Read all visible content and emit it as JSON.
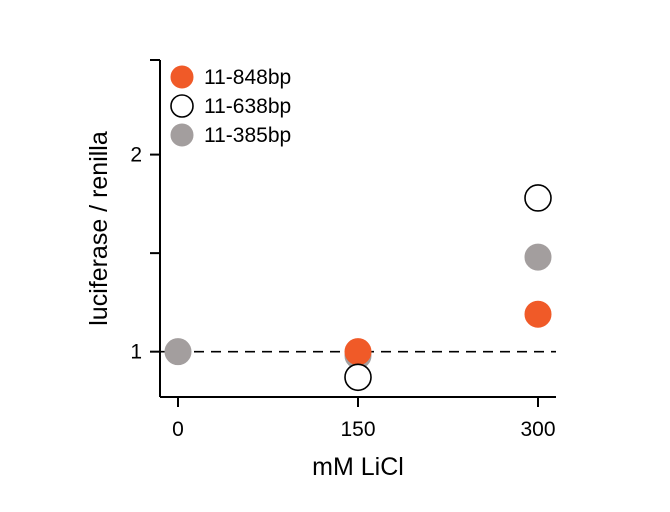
{
  "chart_data": {
    "type": "scatter",
    "xlabel": "mM LiCl",
    "ylabel": "luciferase / renilla",
    "x_ticks": [
      0,
      150,
      300
    ],
    "x_tick_labels": [
      "0",
      "150",
      "300"
    ],
    "y_ticks": [
      1,
      1.5,
      2
    ],
    "y_tick_labels": [
      "1",
      "",
      "2"
    ],
    "xlim": [
      -15,
      315
    ],
    "ylim": [
      0.77,
      2.48
    ],
    "reference_line": {
      "y": 1,
      "style": "dashed"
    },
    "legend_position": "top-left",
    "grid": false,
    "series": [
      {
        "name": "11-848bp",
        "color": "#f05a28",
        "filled": true,
        "points": [
          {
            "x": 150,
            "y": 1.0
          },
          {
            "x": 300,
            "y": 1.19
          }
        ]
      },
      {
        "name": "11-638bp",
        "color": "#000000",
        "filled": false,
        "points": [
          {
            "x": 150,
            "y": 0.87
          },
          {
            "x": 300,
            "y": 1.78
          }
        ]
      },
      {
        "name": "11-385bp",
        "color": "#a39e9e",
        "filled": true,
        "points": [
          {
            "x": 0,
            "y": 1.0
          },
          {
            "x": 150,
            "y": 0.98
          },
          {
            "x": 300,
            "y": 1.48
          }
        ]
      }
    ]
  }
}
